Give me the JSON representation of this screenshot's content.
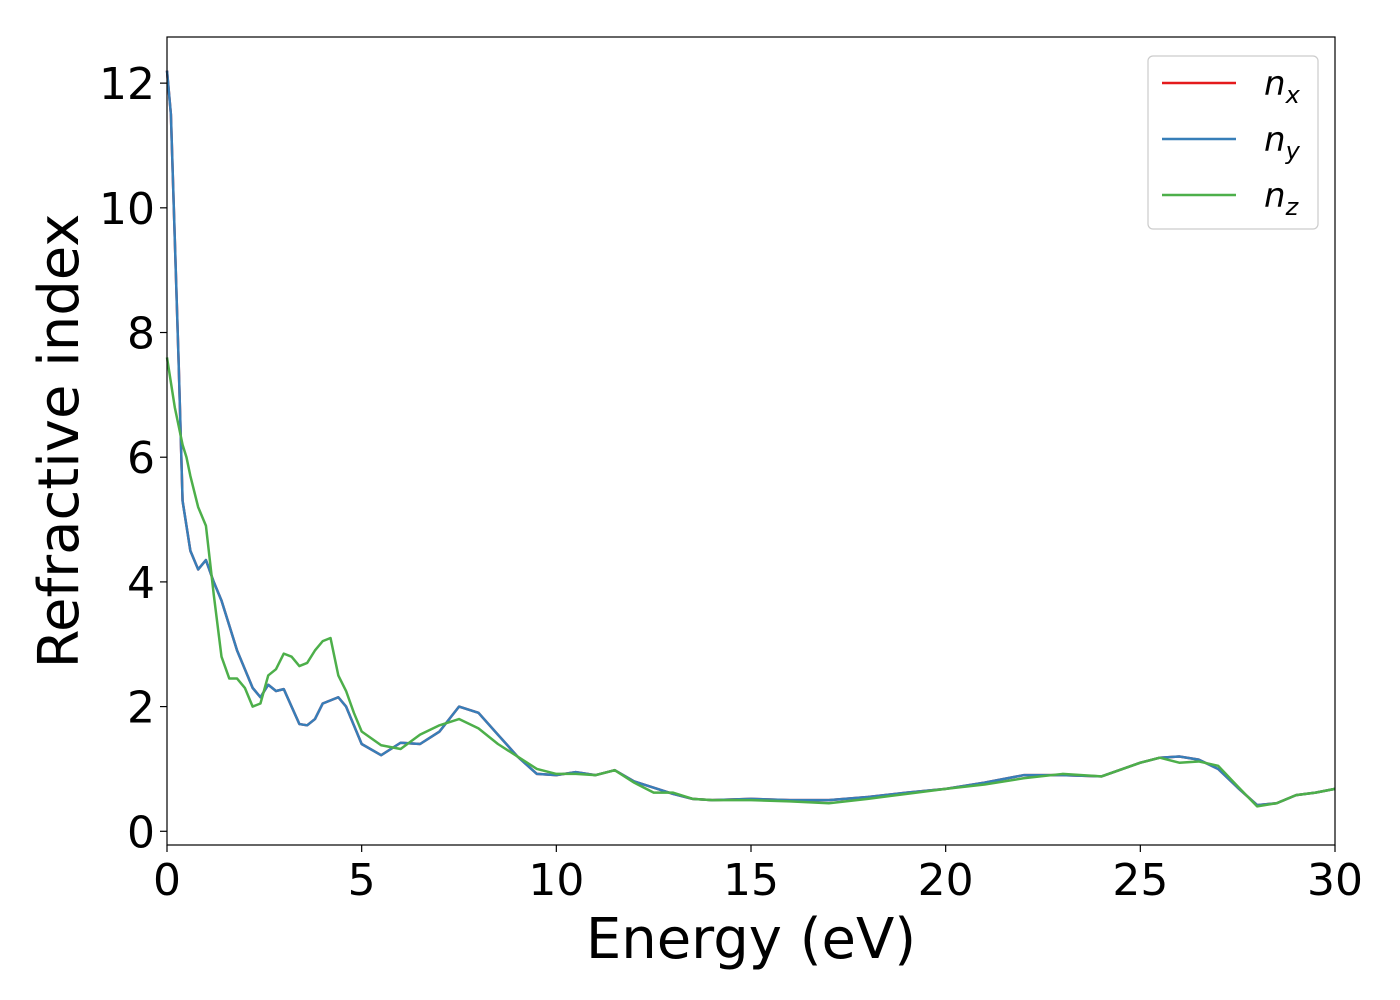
{
  "chart_data": {
    "type": "line",
    "xlabel": "Energy (eV)",
    "ylabel": "Refractive index",
    "x": [
      0,
      0.1,
      0.2,
      0.3,
      0.4,
      0.5,
      0.6,
      0.8,
      1.0,
      1.2,
      1.4,
      1.6,
      1.8,
      2.0,
      2.2,
      2.4,
      2.6,
      2.8,
      3.0,
      3.2,
      3.4,
      3.6,
      3.8,
      4.0,
      4.2,
      4.4,
      4.6,
      4.8,
      5.0,
      5.5,
      6.0,
      6.5,
      7.0,
      7.5,
      8.0,
      8.5,
      9.0,
      9.5,
      10,
      10.5,
      11,
      11.5,
      12,
      12.5,
      13,
      13.5,
      14,
      15,
      16,
      17,
      18,
      19,
      20,
      21,
      22,
      23,
      24,
      25,
      25.5,
      26,
      26.5,
      27,
      27.5,
      28,
      28.5,
      29,
      29.5,
      30
    ],
    "series": [
      {
        "name": "n_x",
        "color": "#e41a1c",
        "values": [
          12.2,
          11.5,
          9.5,
          7.5,
          5.3,
          4.9,
          4.5,
          4.2,
          4.35,
          4.0,
          3.7,
          3.3,
          2.9,
          2.6,
          2.3,
          2.15,
          2.35,
          2.25,
          2.28,
          2.0,
          1.72,
          1.7,
          1.8,
          2.05,
          2.1,
          2.15,
          2.0,
          1.7,
          1.4,
          1.22,
          1.42,
          1.4,
          1.6,
          2.0,
          1.9,
          1.55,
          1.2,
          0.92,
          0.9,
          0.95,
          0.9,
          0.98,
          0.8,
          0.7,
          0.6,
          0.52,
          0.5,
          0.52,
          0.5,
          0.5,
          0.55,
          0.62,
          0.68,
          0.78,
          0.9,
          0.9,
          0.88,
          1.1,
          1.18,
          1.2,
          1.15,
          1.0,
          0.7,
          0.42,
          0.45,
          0.58,
          0.62,
          0.68
        ]
      },
      {
        "name": "n_y",
        "color": "#377eb8",
        "values": [
          12.2,
          11.5,
          9.5,
          7.5,
          5.3,
          4.9,
          4.5,
          4.2,
          4.35,
          4.0,
          3.7,
          3.3,
          2.9,
          2.6,
          2.3,
          2.15,
          2.35,
          2.25,
          2.28,
          2.0,
          1.72,
          1.7,
          1.8,
          2.05,
          2.1,
          2.15,
          2.0,
          1.7,
          1.4,
          1.22,
          1.42,
          1.4,
          1.6,
          2.0,
          1.9,
          1.55,
          1.2,
          0.92,
          0.9,
          0.95,
          0.9,
          0.98,
          0.8,
          0.7,
          0.6,
          0.52,
          0.5,
          0.52,
          0.5,
          0.5,
          0.55,
          0.62,
          0.68,
          0.78,
          0.9,
          0.9,
          0.88,
          1.1,
          1.18,
          1.2,
          1.15,
          1.0,
          0.7,
          0.42,
          0.45,
          0.58,
          0.62,
          0.68
        ]
      },
      {
        "name": "n_z",
        "color": "#4daf4a",
        "values": [
          7.6,
          7.2,
          6.8,
          6.5,
          6.2,
          6.0,
          5.7,
          5.2,
          4.9,
          3.8,
          2.8,
          2.45,
          2.45,
          2.3,
          2.0,
          2.05,
          2.5,
          2.6,
          2.85,
          2.8,
          2.65,
          2.7,
          2.9,
          3.05,
          3.1,
          2.5,
          2.25,
          1.9,
          1.6,
          1.38,
          1.32,
          1.55,
          1.7,
          1.8,
          1.65,
          1.4,
          1.2,
          1.0,
          0.92,
          0.92,
          0.9,
          0.98,
          0.78,
          0.62,
          0.62,
          0.52,
          0.5,
          0.5,
          0.48,
          0.45,
          0.52,
          0.6,
          0.68,
          0.75,
          0.85,
          0.92,
          0.88,
          1.1,
          1.18,
          1.1,
          1.12,
          1.05,
          0.72,
          0.4,
          0.45,
          0.58,
          0.62,
          0.68
        ]
      }
    ],
    "xlim": [
      0,
      30
    ],
    "xticks": [
      0,
      5,
      10,
      15,
      20,
      25,
      30
    ],
    "ylim": [
      -0.22,
      12.74
    ],
    "yticks": [
      0,
      2,
      4,
      6,
      8,
      10,
      12
    ],
    "legend": "upper right"
  }
}
